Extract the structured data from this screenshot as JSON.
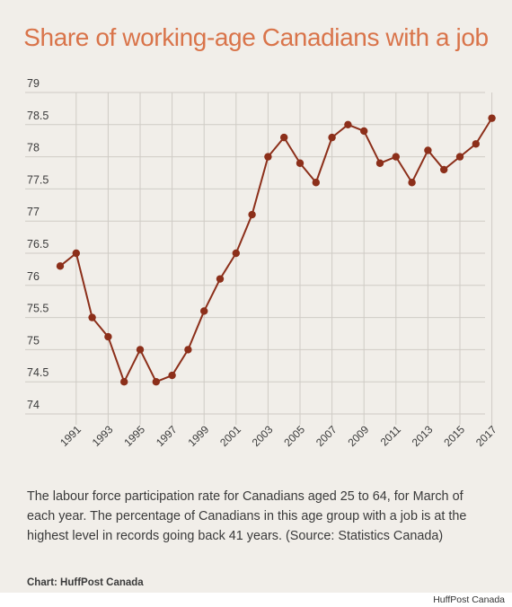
{
  "chart_data": {
    "type": "line",
    "title": "Share of working-age Canadians with a job",
    "xlabel": "",
    "ylabel": "",
    "ylim": [
      74,
      79
    ],
    "yticks": [
      "79",
      "78.5",
      "78",
      "77.5",
      "77",
      "76.5",
      "76",
      "75.5",
      "75",
      "74.5",
      "74"
    ],
    "x": [
      1990,
      1991,
      1992,
      1993,
      1994,
      1995,
      1996,
      1997,
      1998,
      1999,
      2000,
      2001,
      2002,
      2003,
      2004,
      2005,
      2006,
      2007,
      2008,
      2009,
      2010,
      2011,
      2012,
      2013,
      2014,
      2015,
      2016,
      2017
    ],
    "xtick_labels": [
      "1991",
      "1993",
      "1995",
      "1997",
      "1999",
      "2001",
      "2003",
      "2005",
      "2007",
      "2009",
      "2011",
      "2013",
      "2015",
      "2017"
    ],
    "series": [
      {
        "values": [
          76.3,
          76.5,
          75.5,
          75.2,
          74.5,
          75.0,
          74.5,
          74.6,
          75.0,
          75.6,
          76.1,
          76.5,
          77.1,
          78.0,
          78.3,
          77.9,
          77.6,
          78.3,
          78.5,
          78.4,
          77.9,
          78.0,
          77.6,
          78.1,
          77.8,
          78.0,
          78.2,
          78.6
        ],
        "color": "#8c2f1a"
      }
    ],
    "grid": true,
    "grid_color": "#cfcbc5"
  },
  "caption": "The labour force participation rate for Canadians aged 25 to 64, for March of each year. The percentage of Canadians in this age group with a job is at the highest level in records going back 41 years. (Source: Statistics Canada)",
  "credit": "Chart: HuffPost Canada",
  "watermark": "HuffPost Canada",
  "colors": {
    "background": "#f1eee9",
    "title": "#d9744a",
    "line": "#8c2f1a",
    "text": "#3a3a3a"
  }
}
